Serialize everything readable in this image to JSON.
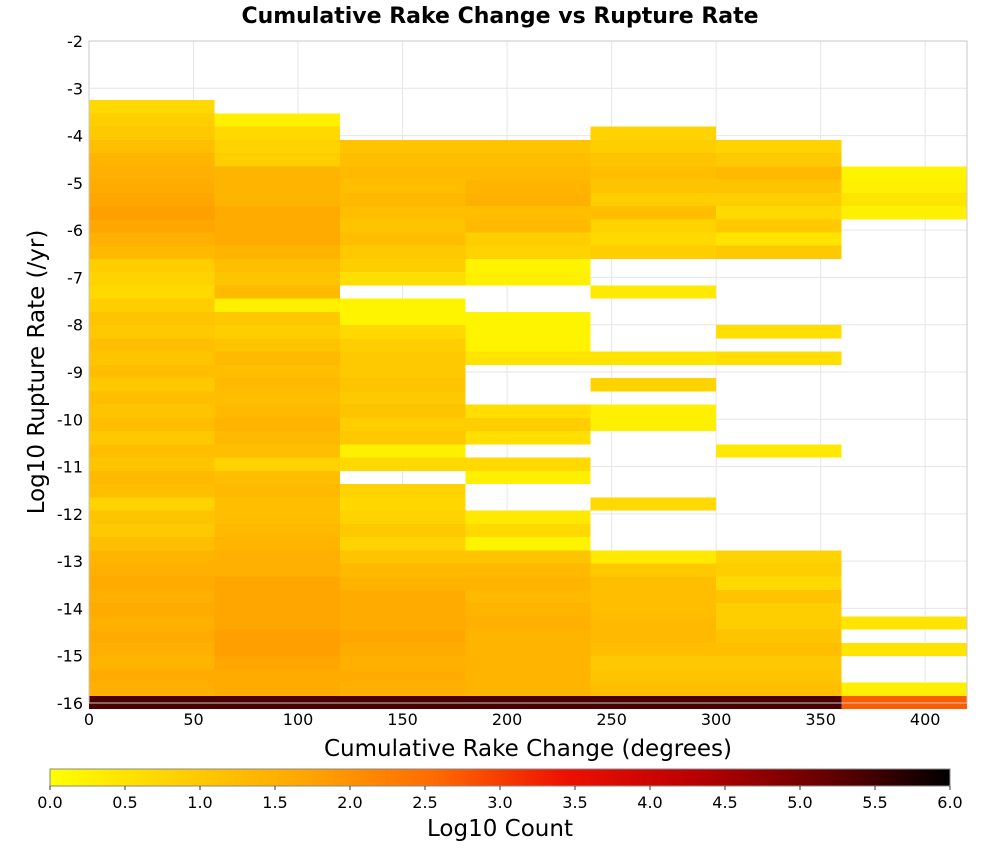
{
  "chart_data": {
    "type": "heatmap",
    "title": "Cumulative Rake Change vs Rupture Rate",
    "xlabel": "Cumulative Rake Change (degrees)",
    "ylabel": "Log10 Rupture Rate (/yr)",
    "xlim": [
      0,
      420
    ],
    "ylim": [
      -16,
      -2
    ],
    "x_ticks": [
      0,
      50,
      100,
      150,
      200,
      250,
      300,
      350,
      400
    ],
    "y_ticks": [
      -2,
      -3,
      -4,
      -5,
      -6,
      -7,
      -8,
      -9,
      -10,
      -11,
      -12,
      -13,
      -14,
      -15,
      -16
    ],
    "grid": true,
    "x_bin_width": 60,
    "y_bin_height": 0.28,
    "colorbar": {
      "label": "Log10 Count",
      "range": [
        0,
        6
      ],
      "ticks": [
        "0.0",
        "0.5",
        "1.0",
        "1.5",
        "2.0",
        "2.5",
        "3.0",
        "3.5",
        "4.0",
        "4.5",
        "5.0",
        "5.5",
        "6.0"
      ],
      "colors": [
        "#ffff00",
        "#ffd000",
        "#ffa500",
        "#ff6a00",
        "#ee1100",
        "#bb0000",
        "#6a0000",
        "#000000"
      ]
    },
    "columns": [
      {
        "x": 0,
        "rows": [
          {
            "y": -3.25,
            "v": 0.7
          },
          {
            "y": -3.53,
            "v": 0.9
          },
          {
            "y": -3.81,
            "v": 1.0
          },
          {
            "y": -4.09,
            "v": 1.2
          },
          {
            "y": -4.37,
            "v": 1.4
          },
          {
            "y": -4.65,
            "v": 1.5
          },
          {
            "y": -4.93,
            "v": 1.6
          },
          {
            "y": -5.21,
            "v": 1.7
          },
          {
            "y": -5.49,
            "v": 1.8
          },
          {
            "y": -5.77,
            "v": 1.7
          },
          {
            "y": -6.05,
            "v": 1.5
          },
          {
            "y": -6.33,
            "v": 1.3
          },
          {
            "y": -6.61,
            "v": 0.9
          },
          {
            "y": -6.89,
            "v": 0.8
          },
          {
            "y": -7.17,
            "v": 0.7
          },
          {
            "y": -7.45,
            "v": 0.9
          },
          {
            "y": -7.73,
            "v": 1.1
          },
          {
            "y": -8.01,
            "v": 1.0
          },
          {
            "y": -8.29,
            "v": 1.2
          },
          {
            "y": -8.57,
            "v": 1.1
          },
          {
            "y": -8.85,
            "v": 1.2
          },
          {
            "y": -9.13,
            "v": 1.0
          },
          {
            "y": -9.41,
            "v": 1.2
          },
          {
            "y": -9.69,
            "v": 1.1
          },
          {
            "y": -9.97,
            "v": 1.2
          },
          {
            "y": -10.25,
            "v": 1.0
          },
          {
            "y": -10.53,
            "v": 1.2
          },
          {
            "y": -10.81,
            "v": 1.1
          },
          {
            "y": -11.09,
            "v": 1.3
          },
          {
            "y": -11.37,
            "v": 1.2
          },
          {
            "y": -11.65,
            "v": 0.8
          },
          {
            "y": -11.93,
            "v": 1.1
          },
          {
            "y": -12.21,
            "v": 1.0
          },
          {
            "y": -12.49,
            "v": 1.2
          },
          {
            "y": -12.77,
            "v": 1.4
          },
          {
            "y": -13.05,
            "v": 1.5
          },
          {
            "y": -13.33,
            "v": 1.6
          },
          {
            "y": -13.61,
            "v": 1.5
          },
          {
            "y": -13.89,
            "v": 1.6
          },
          {
            "y": -14.17,
            "v": 1.5
          },
          {
            "y": -14.45,
            "v": 1.6
          },
          {
            "y": -14.73,
            "v": 1.5
          },
          {
            "y": -15.01,
            "v": 1.4
          },
          {
            "y": -15.29,
            "v": 1.6
          },
          {
            "y": -15.57,
            "v": 1.5
          },
          {
            "y": -15.85,
            "v": 5.4
          }
        ]
      },
      {
        "x": 60,
        "rows": [
          {
            "y": -3.53,
            "v": 0.3
          },
          {
            "y": -3.81,
            "v": 0.7
          },
          {
            "y": -4.09,
            "v": 0.8
          },
          {
            "y": -4.37,
            "v": 0.9
          },
          {
            "y": -4.65,
            "v": 1.4
          },
          {
            "y": -4.93,
            "v": 1.4
          },
          {
            "y": -5.21,
            "v": 1.4
          },
          {
            "y": -5.49,
            "v": 1.6
          },
          {
            "y": -5.77,
            "v": 1.6
          },
          {
            "y": -6.05,
            "v": 1.6
          },
          {
            "y": -6.33,
            "v": 1.4
          },
          {
            "y": -6.61,
            "v": 1.2
          },
          {
            "y": -6.89,
            "v": 1.1
          },
          {
            "y": -7.17,
            "v": 1.3
          },
          {
            "y": -7.45,
            "v": 0.3
          },
          {
            "y": -7.73,
            "v": 1.0
          },
          {
            "y": -8.01,
            "v": 0.9
          },
          {
            "y": -8.29,
            "v": 1.1
          },
          {
            "y": -8.57,
            "v": 1.3
          },
          {
            "y": -8.85,
            "v": 1.2
          },
          {
            "y": -9.13,
            "v": 1.3
          },
          {
            "y": -9.41,
            "v": 1.2
          },
          {
            "y": -9.69,
            "v": 1.3
          },
          {
            "y": -9.97,
            "v": 1.4
          },
          {
            "y": -10.25,
            "v": 1.3
          },
          {
            "y": -10.53,
            "v": 1.2
          },
          {
            "y": -10.81,
            "v": 0.8
          },
          {
            "y": -11.09,
            "v": 1.2
          },
          {
            "y": -11.37,
            "v": 1.3
          },
          {
            "y": -11.65,
            "v": 1.2
          },
          {
            "y": -11.93,
            "v": 1.2
          },
          {
            "y": -12.21,
            "v": 1.3
          },
          {
            "y": -12.49,
            "v": 1.4
          },
          {
            "y": -12.77,
            "v": 1.5
          },
          {
            "y": -13.05,
            "v": 1.5
          },
          {
            "y": -13.33,
            "v": 1.7
          },
          {
            "y": -13.61,
            "v": 1.7
          },
          {
            "y": -13.89,
            "v": 1.7
          },
          {
            "y": -14.17,
            "v": 1.7
          },
          {
            "y": -14.45,
            "v": 1.8
          },
          {
            "y": -14.73,
            "v": 1.8
          },
          {
            "y": -15.01,
            "v": 1.7
          },
          {
            "y": -15.29,
            "v": 1.6
          },
          {
            "y": -15.57,
            "v": 1.6
          },
          {
            "y": -15.85,
            "v": 5.4
          }
        ]
      },
      {
        "x": 120,
        "rows": [
          {
            "y": -4.09,
            "v": 1.1
          },
          {
            "y": -4.37,
            "v": 1.2
          },
          {
            "y": -4.65,
            "v": 1.3
          },
          {
            "y": -4.93,
            "v": 1.2
          },
          {
            "y": -5.21,
            "v": 1.3
          },
          {
            "y": -5.49,
            "v": 1.2
          },
          {
            "y": -5.77,
            "v": 1.1
          },
          {
            "y": -6.05,
            "v": 1.2
          },
          {
            "y": -6.33,
            "v": 1.0
          },
          {
            "y": -6.61,
            "v": 0.9
          },
          {
            "y": -6.89,
            "v": 0.6
          },
          {
            "y": -7.45,
            "v": 0.2
          },
          {
            "y": -7.73,
            "v": 0.2
          },
          {
            "y": -8.01,
            "v": 0.7
          },
          {
            "y": -8.29,
            "v": 0.9
          },
          {
            "y": -8.57,
            "v": 1.0
          },
          {
            "y": -8.85,
            "v": 1.0
          },
          {
            "y": -9.13,
            "v": 1.1
          },
          {
            "y": -9.41,
            "v": 1.0
          },
          {
            "y": -9.69,
            "v": 1.1
          },
          {
            "y": -9.97,
            "v": 0.9
          },
          {
            "y": -10.25,
            "v": 1.0
          },
          {
            "y": -10.53,
            "v": 0.3
          },
          {
            "y": -10.81,
            "v": 0.7
          },
          {
            "y": -11.37,
            "v": 0.8
          },
          {
            "y": -11.65,
            "v": 0.7
          },
          {
            "y": -11.93,
            "v": 0.8
          },
          {
            "y": -12.21,
            "v": 1.0
          },
          {
            "y": -12.49,
            "v": 0.8
          },
          {
            "y": -12.77,
            "v": 1.1
          },
          {
            "y": -13.05,
            "v": 1.3
          },
          {
            "y": -13.33,
            "v": 1.4
          },
          {
            "y": -13.61,
            "v": 1.6
          },
          {
            "y": -13.89,
            "v": 1.6
          },
          {
            "y": -14.17,
            "v": 1.6
          },
          {
            "y": -14.45,
            "v": 1.7
          },
          {
            "y": -14.73,
            "v": 1.6
          },
          {
            "y": -15.01,
            "v": 1.5
          },
          {
            "y": -15.29,
            "v": 1.6
          },
          {
            "y": -15.57,
            "v": 1.5
          },
          {
            "y": -15.85,
            "v": 5.4
          }
        ]
      },
      {
        "x": 180,
        "rows": [
          {
            "y": -4.09,
            "v": 1.1
          },
          {
            "y": -4.37,
            "v": 1.2
          },
          {
            "y": -4.65,
            "v": 1.3
          },
          {
            "y": -4.93,
            "v": 1.4
          },
          {
            "y": -5.21,
            "v": 1.5
          },
          {
            "y": -5.49,
            "v": 1.2
          },
          {
            "y": -5.77,
            "v": 1.3
          },
          {
            "y": -6.05,
            "v": 0.9
          },
          {
            "y": -6.33,
            "v": 0.8
          },
          {
            "y": -6.61,
            "v": 0.2
          },
          {
            "y": -6.89,
            "v": 0.3
          },
          {
            "y": -7.73,
            "v": 0.2
          },
          {
            "y": -8.01,
            "v": 0.2
          },
          {
            "y": -8.29,
            "v": 0.2
          },
          {
            "y": -8.57,
            "v": 0.5
          },
          {
            "y": -9.69,
            "v": 0.6
          },
          {
            "y": -9.97,
            "v": 0.9
          },
          {
            "y": -10.25,
            "v": 0.6
          },
          {
            "y": -10.81,
            "v": 0.7
          },
          {
            "y": -11.09,
            "v": 0.3
          },
          {
            "y": -11.93,
            "v": 0.4
          },
          {
            "y": -12.21,
            "v": 0.7
          },
          {
            "y": -12.49,
            "v": 0.2
          },
          {
            "y": -12.77,
            "v": 1.1
          },
          {
            "y": -13.05,
            "v": 1.3
          },
          {
            "y": -13.33,
            "v": 1.4
          },
          {
            "y": -13.61,
            "v": 1.3
          },
          {
            "y": -13.89,
            "v": 1.4
          },
          {
            "y": -14.17,
            "v": 1.5
          },
          {
            "y": -14.45,
            "v": 1.4
          },
          {
            "y": -14.73,
            "v": 1.4
          },
          {
            "y": -15.01,
            "v": 1.4
          },
          {
            "y": -15.29,
            "v": 1.4
          },
          {
            "y": -15.57,
            "v": 1.4
          },
          {
            "y": -15.85,
            "v": 5.4
          }
        ]
      },
      {
        "x": 240,
        "rows": [
          {
            "y": -3.81,
            "v": 0.8
          },
          {
            "y": -4.09,
            "v": 0.9
          },
          {
            "y": -4.37,
            "v": 1.1
          },
          {
            "y": -4.65,
            "v": 1.2
          },
          {
            "y": -4.93,
            "v": 1.1
          },
          {
            "y": -5.21,
            "v": 0.9
          },
          {
            "y": -5.49,
            "v": 1.2
          },
          {
            "y": -5.77,
            "v": 0.8
          },
          {
            "y": -6.05,
            "v": 0.7
          },
          {
            "y": -6.33,
            "v": 0.9
          },
          {
            "y": -7.17,
            "v": 0.4
          },
          {
            "y": -8.57,
            "v": 0.5
          },
          {
            "y": -9.13,
            "v": 0.8
          },
          {
            "y": -9.69,
            "v": 0.3
          },
          {
            "y": -9.97,
            "v": 0.3
          },
          {
            "y": -11.65,
            "v": 0.7
          },
          {
            "y": -12.77,
            "v": 0.4
          },
          {
            "y": -13.05,
            "v": 1.0
          },
          {
            "y": -13.33,
            "v": 1.2
          },
          {
            "y": -13.61,
            "v": 1.2
          },
          {
            "y": -13.89,
            "v": 1.2
          },
          {
            "y": -14.17,
            "v": 1.3
          },
          {
            "y": -14.45,
            "v": 1.3
          },
          {
            "y": -14.73,
            "v": 1.2
          },
          {
            "y": -15.01,
            "v": 1.0
          },
          {
            "y": -15.29,
            "v": 1.1
          },
          {
            "y": -15.57,
            "v": 1.2
          },
          {
            "y": -15.85,
            "v": 5.4
          }
        ]
      },
      {
        "x": 300,
        "rows": [
          {
            "y": -4.09,
            "v": 0.8
          },
          {
            "y": -4.37,
            "v": 1.0
          },
          {
            "y": -4.65,
            "v": 1.3
          },
          {
            "y": -4.93,
            "v": 1.1
          },
          {
            "y": -5.21,
            "v": 0.9
          },
          {
            "y": -5.49,
            "v": 0.7
          },
          {
            "y": -5.77,
            "v": 1.0
          },
          {
            "y": -6.05,
            "v": 0.5
          },
          {
            "y": -6.33,
            "v": 1.0
          },
          {
            "y": -8.01,
            "v": 0.6
          },
          {
            "y": -8.57,
            "v": 0.6
          },
          {
            "y": -10.53,
            "v": 0.4
          },
          {
            "y": -12.77,
            "v": 0.8
          },
          {
            "y": -13.05,
            "v": 0.9
          },
          {
            "y": -13.33,
            "v": 0.7
          },
          {
            "y": -13.61,
            "v": 1.1
          },
          {
            "y": -13.89,
            "v": 0.9
          },
          {
            "y": -14.17,
            "v": 0.9
          },
          {
            "y": -14.45,
            "v": 1.1
          },
          {
            "y": -14.73,
            "v": 1.2
          },
          {
            "y": -15.01,
            "v": 1.0
          },
          {
            "y": -15.29,
            "v": 1.1
          },
          {
            "y": -15.57,
            "v": 1.2
          },
          {
            "y": -15.85,
            "v": 5.4
          }
        ]
      },
      {
        "x": 360,
        "rows": [
          {
            "y": -4.65,
            "v": 0.2
          },
          {
            "y": -4.93,
            "v": 0.3
          },
          {
            "y": -5.21,
            "v": 0.5
          },
          {
            "y": -5.49,
            "v": 0.3
          },
          {
            "y": -14.17,
            "v": 0.5
          },
          {
            "y": -14.73,
            "v": 0.5
          },
          {
            "y": -15.57,
            "v": 0.3
          },
          {
            "y": -15.85,
            "v": 2.7
          }
        ]
      }
    ]
  }
}
